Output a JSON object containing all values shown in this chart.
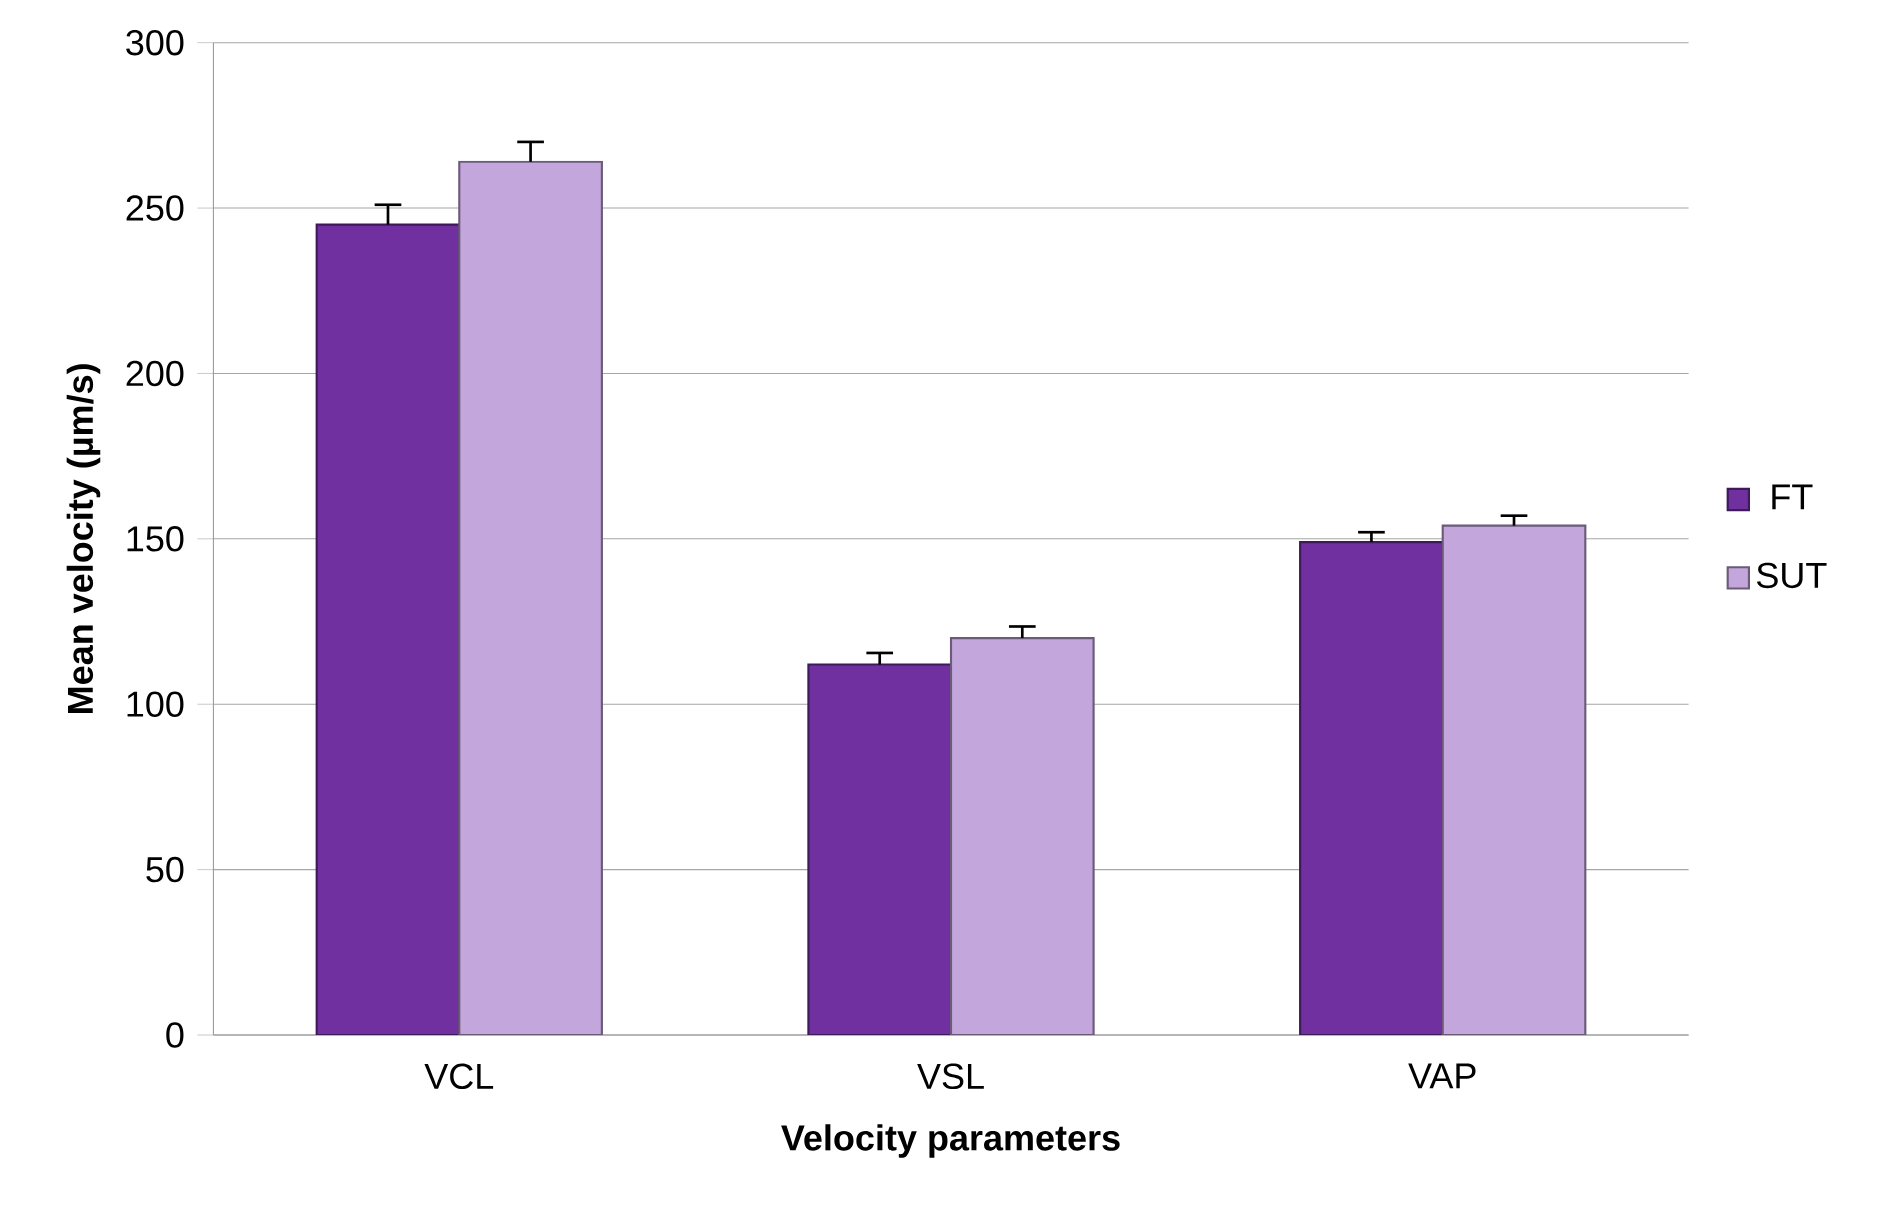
{
  "chart_data": {
    "type": "bar",
    "xlabel": "Velocity parameters",
    "ylabel": "Mean velocity (µm/s)",
    "categories": [
      "VCL",
      "VSL",
      "VAP"
    ],
    "series": [
      {
        "name": "FT",
        "color": "#7030a0",
        "values": [
          245,
          112,
          149
        ],
        "errors": [
          6,
          3.5,
          3
        ]
      },
      {
        "name": "SUT",
        "color": "#c2a6dc",
        "values": [
          264,
          120,
          154
        ],
        "errors": [
          6,
          3.5,
          3
        ]
      }
    ],
    "ylim": [
      0,
      300
    ],
    "yticks": [
      0,
      50,
      100,
      150,
      200,
      250,
      300
    ],
    "grid": "y",
    "legend": "right"
  }
}
